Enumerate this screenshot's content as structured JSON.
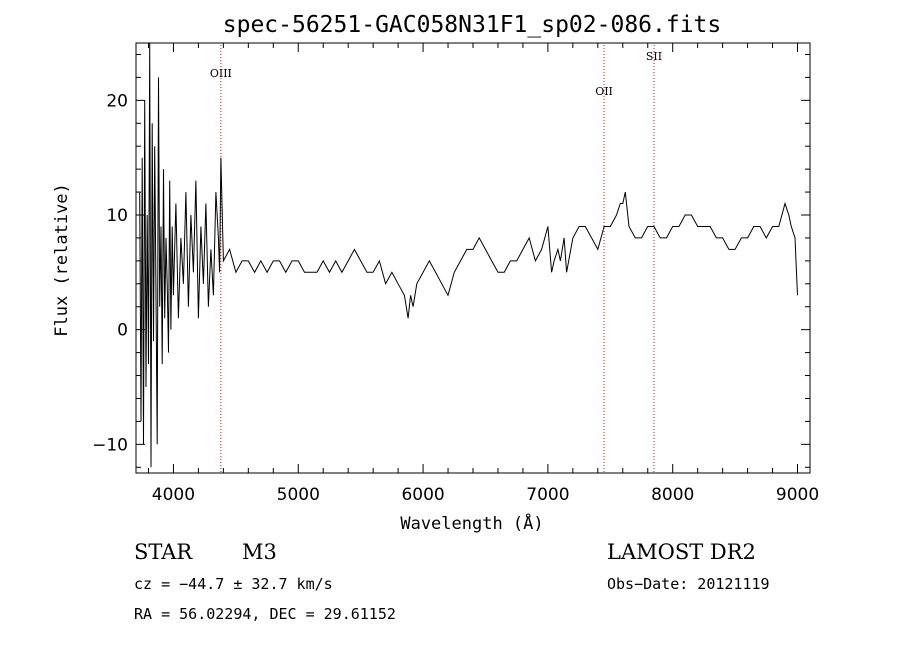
{
  "chart_data": {
    "type": "line",
    "title": "spec-56251-GAC058N31F1_sp02-086.fits",
    "xlabel": "Wavelength (Å)",
    "ylabel": "Flux (relative)",
    "xlim": [
      3700,
      9100
    ],
    "ylim": [
      -12.5,
      25
    ],
    "xticks": [
      4000,
      5000,
      6000,
      7000,
      8000,
      9000
    ],
    "yticks": [
      -10,
      0,
      10,
      20
    ],
    "grid": false,
    "line_color": "#000000",
    "series": [
      {
        "x": [
          3730,
          3740,
          3750,
          3760,
          3770,
          3780,
          3790,
          3800,
          3810,
          3820,
          3830,
          3840,
          3850,
          3860,
          3870,
          3880,
          3890,
          3900,
          3910,
          3920,
          3930,
          3940,
          3950,
          3960,
          3970,
          3980,
          3990,
          4000,
          4020,
          4040,
          4060,
          4080,
          4100,
          4120,
          4140,
          4160,
          4180,
          4200,
          4220,
          4240,
          4260,
          4280,
          4300,
          4320,
          4340,
          4360,
          4370,
          4380,
          4400,
          4450,
          4500,
          4550,
          4600,
          4650,
          4700,
          4750,
          4800,
          4850,
          4900,
          4950,
          5000,
          5050,
          5100,
          5150,
          5200,
          5250,
          5300,
          5350,
          5400,
          5450,
          5500,
          5550,
          5600,
          5650,
          5700,
          5750,
          5800,
          5850,
          5880,
          5900,
          5920,
          5950,
          6000,
          6050,
          6100,
          6150,
          6200,
          6250,
          6300,
          6350,
          6400,
          6450,
          6500,
          6550,
          6600,
          6650,
          6700,
          6750,
          6800,
          6850,
          6900,
          6950,
          7000,
          7030,
          7050,
          7080,
          7100,
          7130,
          7150,
          7200,
          7250,
          7300,
          7350,
          7400,
          7450,
          7500,
          7550,
          7580,
          7600,
          7620,
          7650,
          7700,
          7750,
          7800,
          7850,
          7900,
          7950,
          8000,
          8050,
          8100,
          8150,
          8200,
          8250,
          8300,
          8350,
          8400,
          8450,
          8500,
          8550,
          8600,
          8650,
          8700,
          8750,
          8800,
          8850,
          8900,
          8930,
          8950,
          8980,
          9000
        ],
        "y": [
          12,
          -8,
          15,
          -10,
          20,
          -5,
          10,
          -3,
          25,
          -12,
          18,
          -1,
          16,
          3,
          -10,
          22,
          2,
          9,
          -3,
          14,
          1,
          8,
          4,
          -2,
          13,
          0,
          9,
          3,
          11,
          1,
          8,
          4,
          12,
          2,
          10,
          5,
          13,
          1,
          9,
          4,
          11,
          2,
          7,
          3,
          12,
          8,
          5,
          15,
          6,
          7,
          5,
          6,
          6,
          5,
          6,
          5,
          6,
          6,
          5,
          6,
          6,
          5,
          5,
          5,
          6,
          5,
          6,
          5,
          6,
          7,
          6,
          5,
          5,
          6,
          4,
          5,
          4,
          3,
          1,
          3,
          2,
          4,
          5,
          6,
          5,
          4,
          3,
          5,
          6,
          7,
          7,
          8,
          7,
          6,
          5,
          5,
          6,
          6,
          7,
          8,
          6,
          7,
          9,
          5,
          6,
          7,
          6,
          8,
          5,
          8,
          9,
          9,
          8,
          7,
          9,
          9,
          10,
          11,
          11,
          12,
          9,
          8,
          8,
          9,
          9,
          8,
          8,
          9,
          9,
          10,
          10,
          9,
          9,
          9,
          8,
          8,
          7,
          7,
          8,
          8,
          9,
          9,
          8,
          9,
          9,
          11,
          10,
          9,
          8,
          3
        ]
      }
    ],
    "annotations": [
      {
        "label": "OIII",
        "x": 4380
      },
      {
        "label": "OII",
        "x": 7450
      },
      {
        "label": "SII",
        "x": 7850
      }
    ]
  },
  "info": {
    "object_class": "STAR",
    "subclass": "M3",
    "survey": "LAMOST DR2",
    "cz": "cz = −44.7 ± 32.7 km/s",
    "obs_date": "Obs−Date: 20121119",
    "coords": "RA =  56.02294, DEC =  29.61152"
  }
}
